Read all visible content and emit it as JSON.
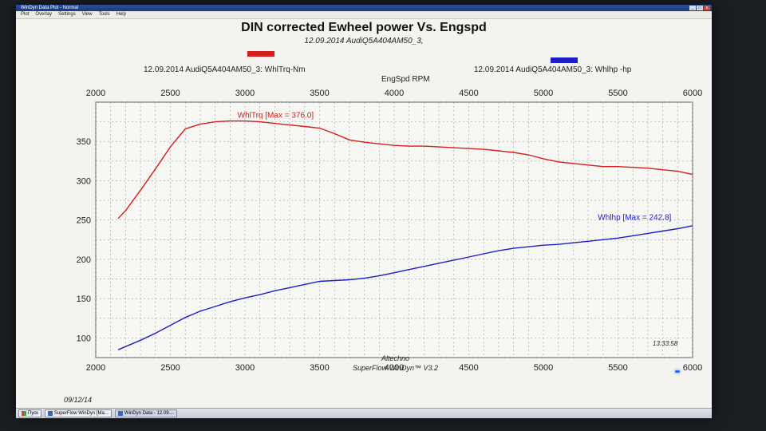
{
  "window": {
    "title": "WinDyn Data Plot - Normal",
    "buttons": [
      "_",
      "□",
      "x"
    ]
  },
  "menu": [
    "Plot",
    "Overlay",
    "Settings",
    "View",
    "Tools",
    "Help"
  ],
  "colors": {
    "torque": "#d41d1d",
    "power": "#1e1ec8",
    "grid": "#9a9a9a"
  },
  "chart_data": {
    "type": "line",
    "title": "DIN corrected Ewheel power Vs. Engspd",
    "subtitle": "12.09.2014 AudiQ5A404AM50_3,",
    "legend": [
      {
        "label": "12.09.2014 AudiQ5A404AM50_3: WhlTrq-Nm",
        "color": "#d41d1d"
      },
      {
        "label": "12.09.2014 AudiQ5A404AM50_3: Whlhp -hp",
        "color": "#1e1ec8"
      }
    ],
    "x_axis": {
      "label": "EngSpd RPM",
      "range": [
        2000,
        6000
      ],
      "ticks": [
        "2000",
        "2500",
        "3000",
        "3500",
        "4000",
        "4500",
        "5000",
        "5500",
        "6000"
      ]
    },
    "y_axis": {
      "range": [
        75,
        400
      ],
      "ticks": [
        "100",
        "150",
        "200",
        "250",
        "300",
        "350"
      ]
    },
    "grid": true,
    "series": [
      {
        "name": "WhlTrq",
        "annotation": "WhlTrq [Max = 376.0]",
        "color": "#d41d1d",
        "x": [
          2150,
          2200,
          2300,
          2400,
          2500,
          2600,
          2700,
          2800,
          2900,
          3000,
          3100,
          3200,
          3300,
          3400,
          3500,
          3600,
          3700,
          3800,
          3900,
          4000,
          4100,
          4200,
          4300,
          4400,
          4500,
          4600,
          4700,
          4800,
          4900,
          5000,
          5100,
          5200,
          5300,
          5400,
          5500,
          5600,
          5700,
          5800,
          5900,
          6000
        ],
        "y": [
          252,
          262,
          288,
          315,
          343,
          366,
          372,
          375,
          376,
          376,
          375,
          373,
          371,
          369,
          367,
          360,
          352,
          349,
          347,
          345,
          344,
          344,
          343,
          342,
          341,
          340,
          338,
          336,
          333,
          328,
          324,
          322,
          320,
          318,
          318,
          317,
          316,
          314,
          312,
          308
        ]
      },
      {
        "name": "Whlhp",
        "annotation": "Whlhp [Max = 242.8]",
        "color": "#1e1ec8",
        "x": [
          2150,
          2200,
          2300,
          2400,
          2500,
          2600,
          2700,
          2800,
          2900,
          3000,
          3100,
          3200,
          3300,
          3400,
          3500,
          3600,
          3700,
          3800,
          3900,
          4000,
          4100,
          4200,
          4300,
          4400,
          4500,
          4600,
          4700,
          4800,
          4900,
          5000,
          5100,
          5200,
          5300,
          5400,
          5500,
          5600,
          5700,
          5800,
          5900,
          6000
        ],
        "y": [
          85,
          89,
          97,
          106,
          116,
          126,
          134,
          140,
          146,
          151,
          155,
          160,
          164,
          168,
          172,
          173,
          174,
          176,
          179,
          183,
          187,
          191,
          195,
          199,
          203,
          207,
          211,
          214,
          216,
          218,
          219,
          221,
          223,
          225,
          227,
          230,
          233,
          236,
          239,
          242.8
        ]
      }
    ]
  },
  "footer": {
    "company": "Altechno",
    "software": "SuperFlow WinDyn™ V3.2",
    "date": "09/12/14",
    "time": "13:33:58"
  },
  "taskbar": {
    "start": "Пуск",
    "items": [
      "SuperFlow WinDyn [Ma...",
      "WinDyn Data - 12.09...."
    ]
  }
}
